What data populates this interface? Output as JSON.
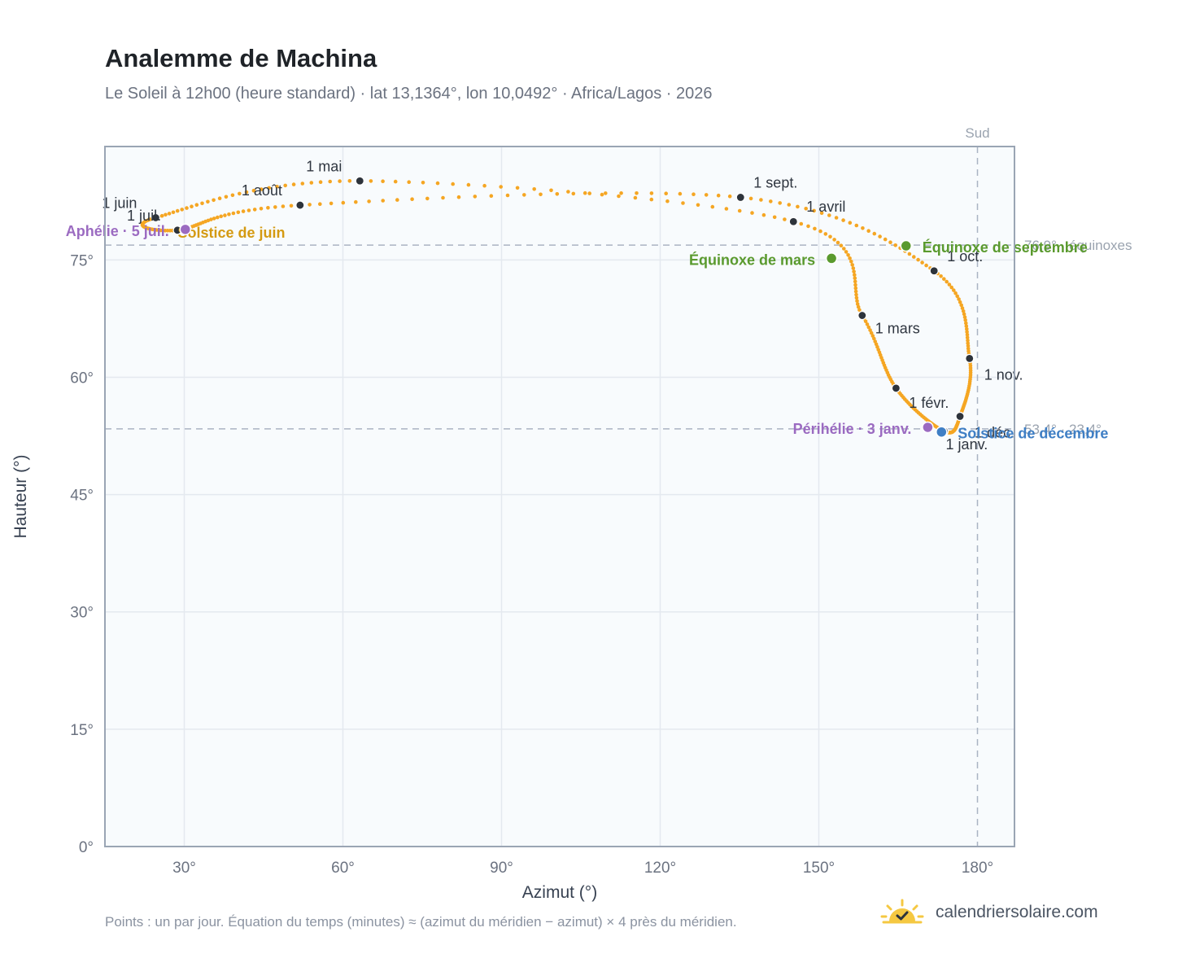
{
  "header": {
    "title": "Analemme de Machina",
    "subtitle": "Le Soleil à 12h00 (heure standard) · lat 13,1364°, lon 10,0492° · Africa/Lagos · 2026"
  },
  "footer": {
    "note": "Points : un par jour. Équation du temps (minutes) ≈ (azimut du méridien − azimut) × 4 près du méridien.",
    "brand": "calendriersolaire.com"
  },
  "colors": {
    "curve": "#f5a623",
    "month_dot": "#2d333b",
    "equinox": "#5a9a2e",
    "solstice_june": "#d49a12",
    "solstice_december": "#3f7fc5",
    "apsis": "#9b6bc1",
    "reference": "#aab4c3"
  },
  "chart_data": {
    "type": "scatter",
    "xlabel": "Azimut (°)",
    "ylabel": "Hauteur (°)",
    "xlim": [
      15,
      187
    ],
    "ylim": [
      0,
      89.5
    ],
    "x_ticks": [
      {
        "value": 30,
        "label": "30°"
      },
      {
        "value": 60,
        "label": "60°"
      },
      {
        "value": 90,
        "label": "90°"
      },
      {
        "value": 120,
        "label": "120°"
      },
      {
        "value": 150,
        "label": "150°"
      },
      {
        "value": 180,
        "label": "180°"
      }
    ],
    "y_ticks": [
      {
        "value": 0,
        "label": "0°"
      },
      {
        "value": 15,
        "label": "15°"
      },
      {
        "value": 30,
        "label": "30°"
      },
      {
        "value": 45,
        "label": "45°"
      },
      {
        "value": 60,
        "label": "60°"
      },
      {
        "value": 75,
        "label": "75°"
      }
    ],
    "grid": true,
    "south_line": {
      "azimuth": 180,
      "label": "Sud"
    },
    "reference_lines": [
      {
        "altitude": 76.9,
        "label": "76,9° · équinoxes"
      },
      {
        "altitude": 53.4,
        "label": "53,4° · 23,4°"
      }
    ],
    "months": [
      {
        "label": "1 janv.",
        "az": 173.7,
        "alt": 53.1
      },
      {
        "label": "1 févr.",
        "az": 164.6,
        "alt": 58.6
      },
      {
        "label": "1 mars",
        "az": 158.2,
        "alt": 67.9
      },
      {
        "label": "1 avril",
        "az": 145.2,
        "alt": 79.9
      },
      {
        "label": "1 mai",
        "az": 63.2,
        "alt": 85.1
      },
      {
        "label": "1 juin",
        "az": 24.6,
        "alt": 80.4
      },
      {
        "label": "1 juil.",
        "az": 28.7,
        "alt": 78.8
      },
      {
        "label": "1 août",
        "az": 51.9,
        "alt": 82.0
      },
      {
        "label": "1 sept.",
        "az": 135.2,
        "alt": 83.0
      },
      {
        "label": "1 oct.",
        "az": 171.8,
        "alt": 73.6
      },
      {
        "label": "1 nov.",
        "az": 178.5,
        "alt": 62.4
      },
      {
        "label": "1 déc.",
        "az": 176.7,
        "alt": 55.0
      }
    ],
    "events": [
      {
        "label": "Équinoxe de mars",
        "az": 152.4,
        "alt": 75.2,
        "kind": "equinox"
      },
      {
        "label": "Équinoxe de septembre",
        "az": 166.5,
        "alt": 76.8,
        "kind": "equinox"
      },
      {
        "label": "Solstice de juin",
        "az": 30.3,
        "alt": 78.9,
        "kind": "solstice_june"
      },
      {
        "label": "Solstice de décembre",
        "az": 173.2,
        "alt": 53.0,
        "kind": "solstice_december"
      },
      {
        "label": "Périhélie · 3 janv.",
        "az": 170.6,
        "alt": 53.6,
        "kind": "apsis"
      },
      {
        "label": "Aphélie · 5 juil.",
        "az": 30.2,
        "alt": 78.9,
        "kind": "apsis"
      }
    ]
  }
}
